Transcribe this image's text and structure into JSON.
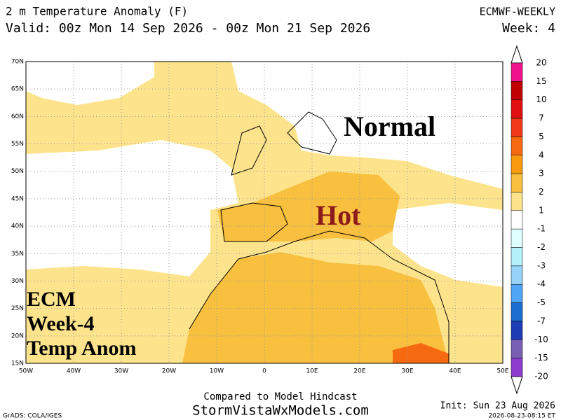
{
  "header": {
    "title": "2 m Temperature Anomaly (F)",
    "valid": "Valid: 00z Mon 14 Sep 2026 - 00z Mon 21 Sep 2026",
    "model": "ECMWF-WEEKLY",
    "week": "Week: 4"
  },
  "map": {
    "lat_labels": [
      "70N",
      "65N",
      "60N",
      "55N",
      "50N",
      "45N",
      "40N",
      "35N",
      "30N",
      "25N",
      "20N",
      "15N"
    ],
    "lon_labels": [
      "50W",
      "40W",
      "30W",
      "20W",
      "10W",
      "0",
      "10E",
      "20E",
      "30E",
      "40E",
      "50E"
    ],
    "annotations": {
      "normal": "Normal",
      "hot": "Hot",
      "corner": [
        "ECM",
        "Week-4",
        "Temp Anom"
      ]
    }
  },
  "colorbar": {
    "labels": [
      "20",
      "15",
      "10",
      "7",
      "5",
      "4",
      "3",
      "2",
      "1",
      "-1",
      "-2",
      "-3",
      "-4",
      "-5",
      "-7",
      "-10",
      "-15",
      "-20"
    ],
    "colors": [
      "#f0128c",
      "#c00000",
      "#e01010",
      "#f03a1a",
      "#f56a10",
      "#f79a10",
      "#f9c040",
      "#fde48c",
      "#ffffff",
      "#e0ffff",
      "#b4f0fa",
      "#96d2fa",
      "#50a5f5",
      "#1e6ed2",
      "#1e3cb4",
      "#7860b4",
      "#8c3ccc"
    ]
  },
  "footer": {
    "compared": "Compared to Model Hindcast",
    "site": "StormVistaWxModels.com",
    "init": "Init: Sun 23 Aug 2026",
    "grads": "GrADS: COLA/IGES",
    "stamp": "2026-08-23-08:15 ET"
  }
}
